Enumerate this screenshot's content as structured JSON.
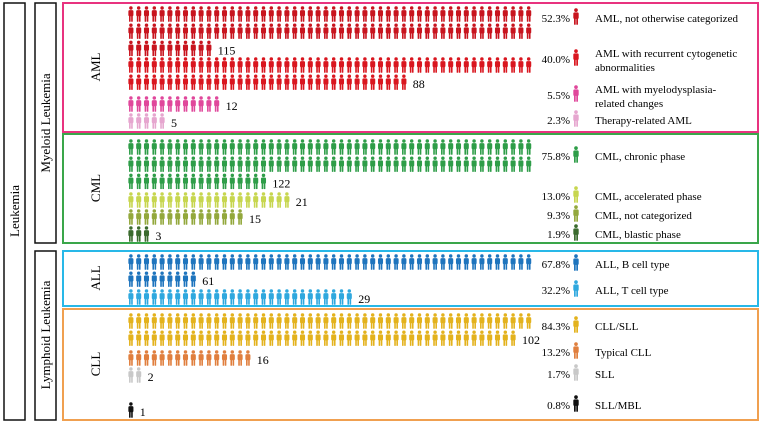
{
  "labels": {
    "root": "Leukemia",
    "myeloid": "Myeloid Leukemia",
    "lymphoid": "Lymphoid Leukemia"
  },
  "colors": {
    "aml_border": "#e8337f",
    "cml_border": "#3aa64a",
    "all_border": "#28b8e8",
    "cll_border": "#f0a050"
  },
  "chart_data": {
    "type": "pictogram",
    "icon": "person-icon",
    "groups": [
      {
        "name": "AML",
        "subtypes": [
          {
            "label": "AML, not otherwise categorized",
            "percent": "52.3%",
            "count": 115,
            "color": "#c8141e"
          },
          {
            "label": "AML with recurrent cytogenetic abnormalities",
            "percent": "40.0%",
            "count": 88,
            "color": "#d9161f"
          },
          {
            "label": "AML with myelodysplasia-related changes",
            "percent": "5.5%",
            "count": 12,
            "color": "#e0479b"
          },
          {
            "label": "Therapy-related AML",
            "percent": "2.3%",
            "count": 5,
            "color": "#e6a6cf"
          }
        ]
      },
      {
        "name": "CML",
        "subtypes": [
          {
            "label": "CML, chronic phase",
            "percent": "75.8%",
            "count": 122,
            "color": "#2e9d48"
          },
          {
            "label": "CML, accelerated phase",
            "percent": "13.0%",
            "count": 21,
            "color": "#c7d64f"
          },
          {
            "label": "CML, not categorized",
            "percent": "9.3%",
            "count": 15,
            "color": "#93a83c"
          },
          {
            "label": "CML, blastic phase",
            "percent": "1.9%",
            "count": 3,
            "color": "#3b6b2e"
          }
        ]
      },
      {
        "name": "ALL",
        "subtypes": [
          {
            "label": "ALL, B cell type",
            "percent": "67.8%",
            "count": 61,
            "color": "#1e74bd"
          },
          {
            "label": "ALL, T cell type",
            "percent": "32.2%",
            "count": 29,
            "color": "#2fa8de"
          }
        ]
      },
      {
        "name": "CLL",
        "subtypes": [
          {
            "label": "CLL/SLL",
            "percent": "84.3%",
            "count": 102,
            "color": "#e3b21d"
          },
          {
            "label": "Typical CLL",
            "percent": "13.2%",
            "count": 16,
            "color": "#e07f3e"
          },
          {
            "label": "SLL",
            "percent": "1.7%",
            "count": 2,
            "color": "#c8c8c8"
          },
          {
            "label": "SLL/MBL",
            "percent": "0.8%",
            "count": 1,
            "color": "#111111"
          }
        ]
      }
    ]
  }
}
